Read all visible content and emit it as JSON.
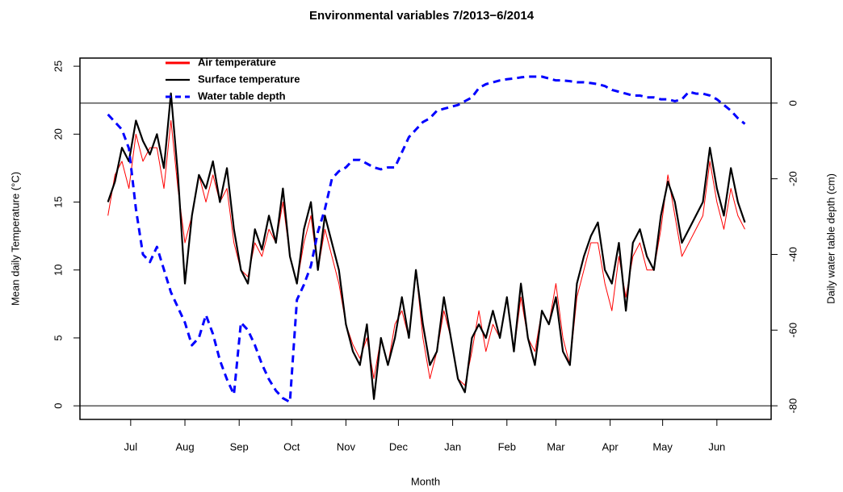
{
  "chart_data": {
    "type": "line",
    "title": "Environmental variables 7/2013−6/2014",
    "x_label": "Month",
    "y_label": "Mean daily Temperature (°C)",
    "y2_label": "Daily water table depth (cm)",
    "xlim": [
      -29,
      366
    ],
    "xticks": [
      {
        "value": 0,
        "label": "Jul"
      },
      {
        "value": 31,
        "label": "Aug"
      },
      {
        "value": 62,
        "label": "Sep"
      },
      {
        "value": 92,
        "label": "Oct"
      },
      {
        "value": 123,
        "label": "Nov"
      },
      {
        "value": 153,
        "label": "Dec"
      },
      {
        "value": 184,
        "label": "Jan"
      },
      {
        "value": 215,
        "label": "Feb"
      },
      {
        "value": 243,
        "label": "Mar"
      },
      {
        "value": 274,
        "label": "Apr"
      },
      {
        "value": 304,
        "label": "May"
      },
      {
        "value": 335,
        "label": "Jun"
      }
    ],
    "ylim": [
      -1,
      25.6
    ],
    "yticks": [
      0,
      5,
      10,
      15,
      20,
      25
    ],
    "y2lim": [
      -83.6,
      11.9
    ],
    "y2ticks": [
      -80,
      -60,
      -40,
      -20,
      0
    ],
    "reference_lines": [
      {
        "axis": "y2",
        "value": 0
      },
      {
        "axis": "y",
        "value": 0
      }
    ],
    "legend": "top-left",
    "x": [
      -13,
      -9,
      -5,
      -1,
      3,
      7,
      11,
      15,
      19,
      23,
      27,
      31,
      35,
      39,
      43,
      47,
      51,
      55,
      59,
      63,
      67,
      71,
      75,
      79,
      83,
      87,
      91,
      95,
      99,
      103,
      107,
      111,
      115,
      119,
      123,
      127,
      131,
      135,
      139,
      143,
      147,
      151,
      155,
      159,
      163,
      167,
      171,
      175,
      179,
      183,
      187,
      191,
      195,
      199,
      203,
      207,
      211,
      215,
      219,
      223,
      227,
      231,
      235,
      239,
      243,
      247,
      251,
      255,
      259,
      263,
      267,
      271,
      275,
      279,
      283,
      287,
      291,
      295,
      299,
      303,
      307,
      311,
      315,
      319,
      323,
      327,
      331,
      335,
      339,
      343,
      347,
      351
    ],
    "series": [
      {
        "name": "Air temperature",
        "color": "#ff0000",
        "width": 1,
        "dashed": false,
        "values": [
          14,
          17,
          18,
          16,
          20,
          18,
          19,
          19,
          16,
          21,
          16,
          12,
          14,
          17,
          15,
          17,
          15,
          16,
          12,
          10,
          9.5,
          12,
          11,
          13,
          12,
          15,
          11,
          9,
          12,
          14,
          10,
          13,
          11,
          9,
          6,
          4.5,
          3.5,
          5,
          2,
          5,
          3,
          6,
          7,
          5,
          10,
          5,
          2,
          4,
          7,
          5,
          2,
          1.5,
          4,
          7,
          4,
          6,
          5,
          8,
          4,
          8,
          5,
          4,
          7,
          6,
          9,
          5,
          3,
          8,
          10,
          12,
          12,
          9,
          7,
          11,
          8,
          11,
          12,
          10,
          10,
          13,
          17,
          14,
          11,
          12,
          13,
          14,
          18,
          15,
          13,
          16,
          14,
          13
        ]
      },
      {
        "name": "Surface temperature",
        "color": "#000000",
        "width": 2.2,
        "dashed": false,
        "values": [
          15,
          16.5,
          19,
          18,
          21,
          19.5,
          18.5,
          20,
          17.5,
          23,
          17,
          9,
          14,
          17,
          16,
          18,
          15,
          17.5,
          13,
          10,
          9,
          13,
          11.5,
          14,
          12,
          16,
          11,
          9,
          13,
          15,
          10,
          14,
          12,
          10,
          6,
          4,
          3,
          6,
          0.5,
          5,
          3,
          5,
          8,
          5,
          10,
          6,
          3,
          4,
          8,
          5,
          2,
          1,
          5,
          6,
          5,
          7,
          5,
          8,
          4,
          9,
          5,
          3,
          7,
          6,
          8,
          4,
          3,
          9,
          11,
          12.5,
          13.5,
          10,
          9,
          12,
          7,
          12,
          13,
          11,
          10,
          14,
          16.5,
          15,
          12,
          13,
          14,
          15,
          19,
          16,
          14,
          17.5,
          15,
          13.5
        ]
      },
      {
        "name": "Water table depth",
        "color": "#0000ff",
        "width": 3,
        "dashed": true,
        "axis": "y2",
        "values": [
          -3,
          -5,
          -7,
          -12,
          -28,
          -40,
          -42,
          -38,
          -44,
          -50,
          -54,
          -58,
          -64,
          -62,
          -56,
          -61,
          -68,
          -73,
          -77,
          -58,
          -60,
          -64,
          -69,
          -73,
          -76,
          -78,
          -79,
          -52,
          -48,
          -43,
          -34,
          -28,
          -20,
          -18,
          -17,
          -15,
          -15,
          -16,
          -17,
          -17.5,
          -17,
          -17,
          -13,
          -9,
          -7,
          -5,
          -4,
          -2,
          -1.5,
          -1,
          -0.5,
          0.5,
          1.5,
          4,
          5,
          5.5,
          6,
          6.3,
          6.5,
          6.8,
          7,
          7,
          7,
          6.5,
          6,
          6,
          5.8,
          5.5,
          5.5,
          5.3,
          5,
          4.5,
          3.5,
          3,
          2.5,
          2,
          2,
          1.5,
          1.5,
          1,
          1,
          0.5,
          1,
          3,
          2.5,
          2.5,
          2,
          1,
          -0.5,
          -2,
          -4,
          -5.5
        ]
      }
    ]
  }
}
